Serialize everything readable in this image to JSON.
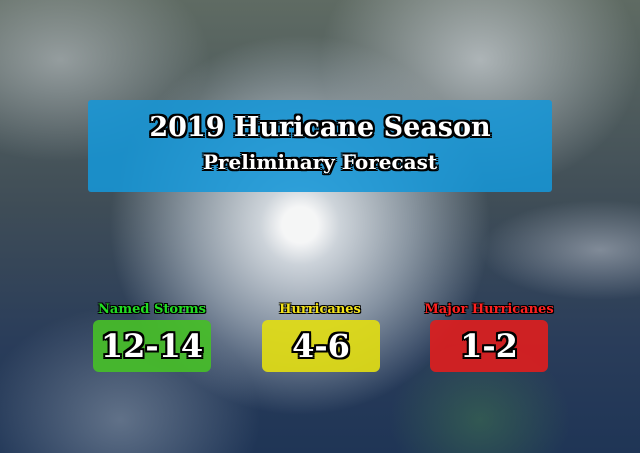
{
  "header": {
    "title": "2019 Huricane Season",
    "subtitle": "Preliminary Forecast"
  },
  "forecasts": [
    {
      "label": "Named Storms",
      "range": "12-14"
    },
    {
      "label": "Hurricanes",
      "range": "4-6"
    },
    {
      "label": "Major Hurricanes",
      "range": "1-2"
    }
  ]
}
